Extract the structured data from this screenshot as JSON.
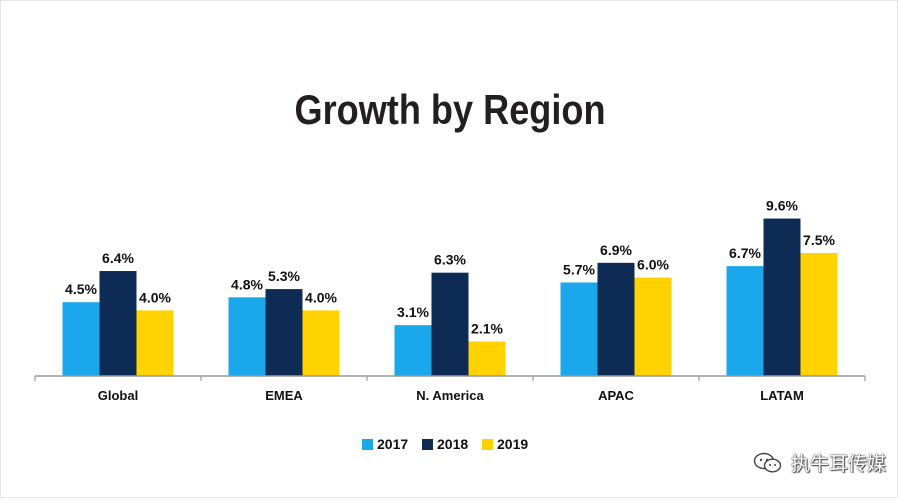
{
  "chart_data": {
    "type": "bar",
    "title": "Growth by Region",
    "categories": [
      "Global",
      "EMEA",
      "N. America",
      "APAC",
      "LATAM"
    ],
    "series": [
      {
        "name": "2017",
        "color": "#1aa7ec",
        "values": [
          4.5,
          4.8,
          3.1,
          5.7,
          6.7
        ],
        "labels": [
          "4.5%",
          "4.8%",
          "3.1%",
          "5.7%",
          "6.7%"
        ]
      },
      {
        "name": "2018",
        "color": "#0d2b54",
        "values": [
          6.4,
          5.3,
          6.3,
          6.9,
          9.6
        ],
        "labels": [
          "6.4%",
          "5.3%",
          "6.3%",
          "6.9%",
          "9.6%"
        ]
      },
      {
        "name": "2019",
        "color": "#ffd200",
        "values": [
          4.0,
          4.0,
          2.1,
          6.0,
          7.5
        ],
        "labels": [
          "4.0%",
          "4.0%",
          "2.1%",
          "6.0%",
          "7.5%"
        ]
      }
    ],
    "ylim": [
      0,
      10
    ],
    "grid": false,
    "legend_position": "bottom-center",
    "xlabel": "",
    "ylabel": ""
  },
  "watermark": {
    "text": "执牛耳传媒",
    "icon": "wechat-icon"
  }
}
